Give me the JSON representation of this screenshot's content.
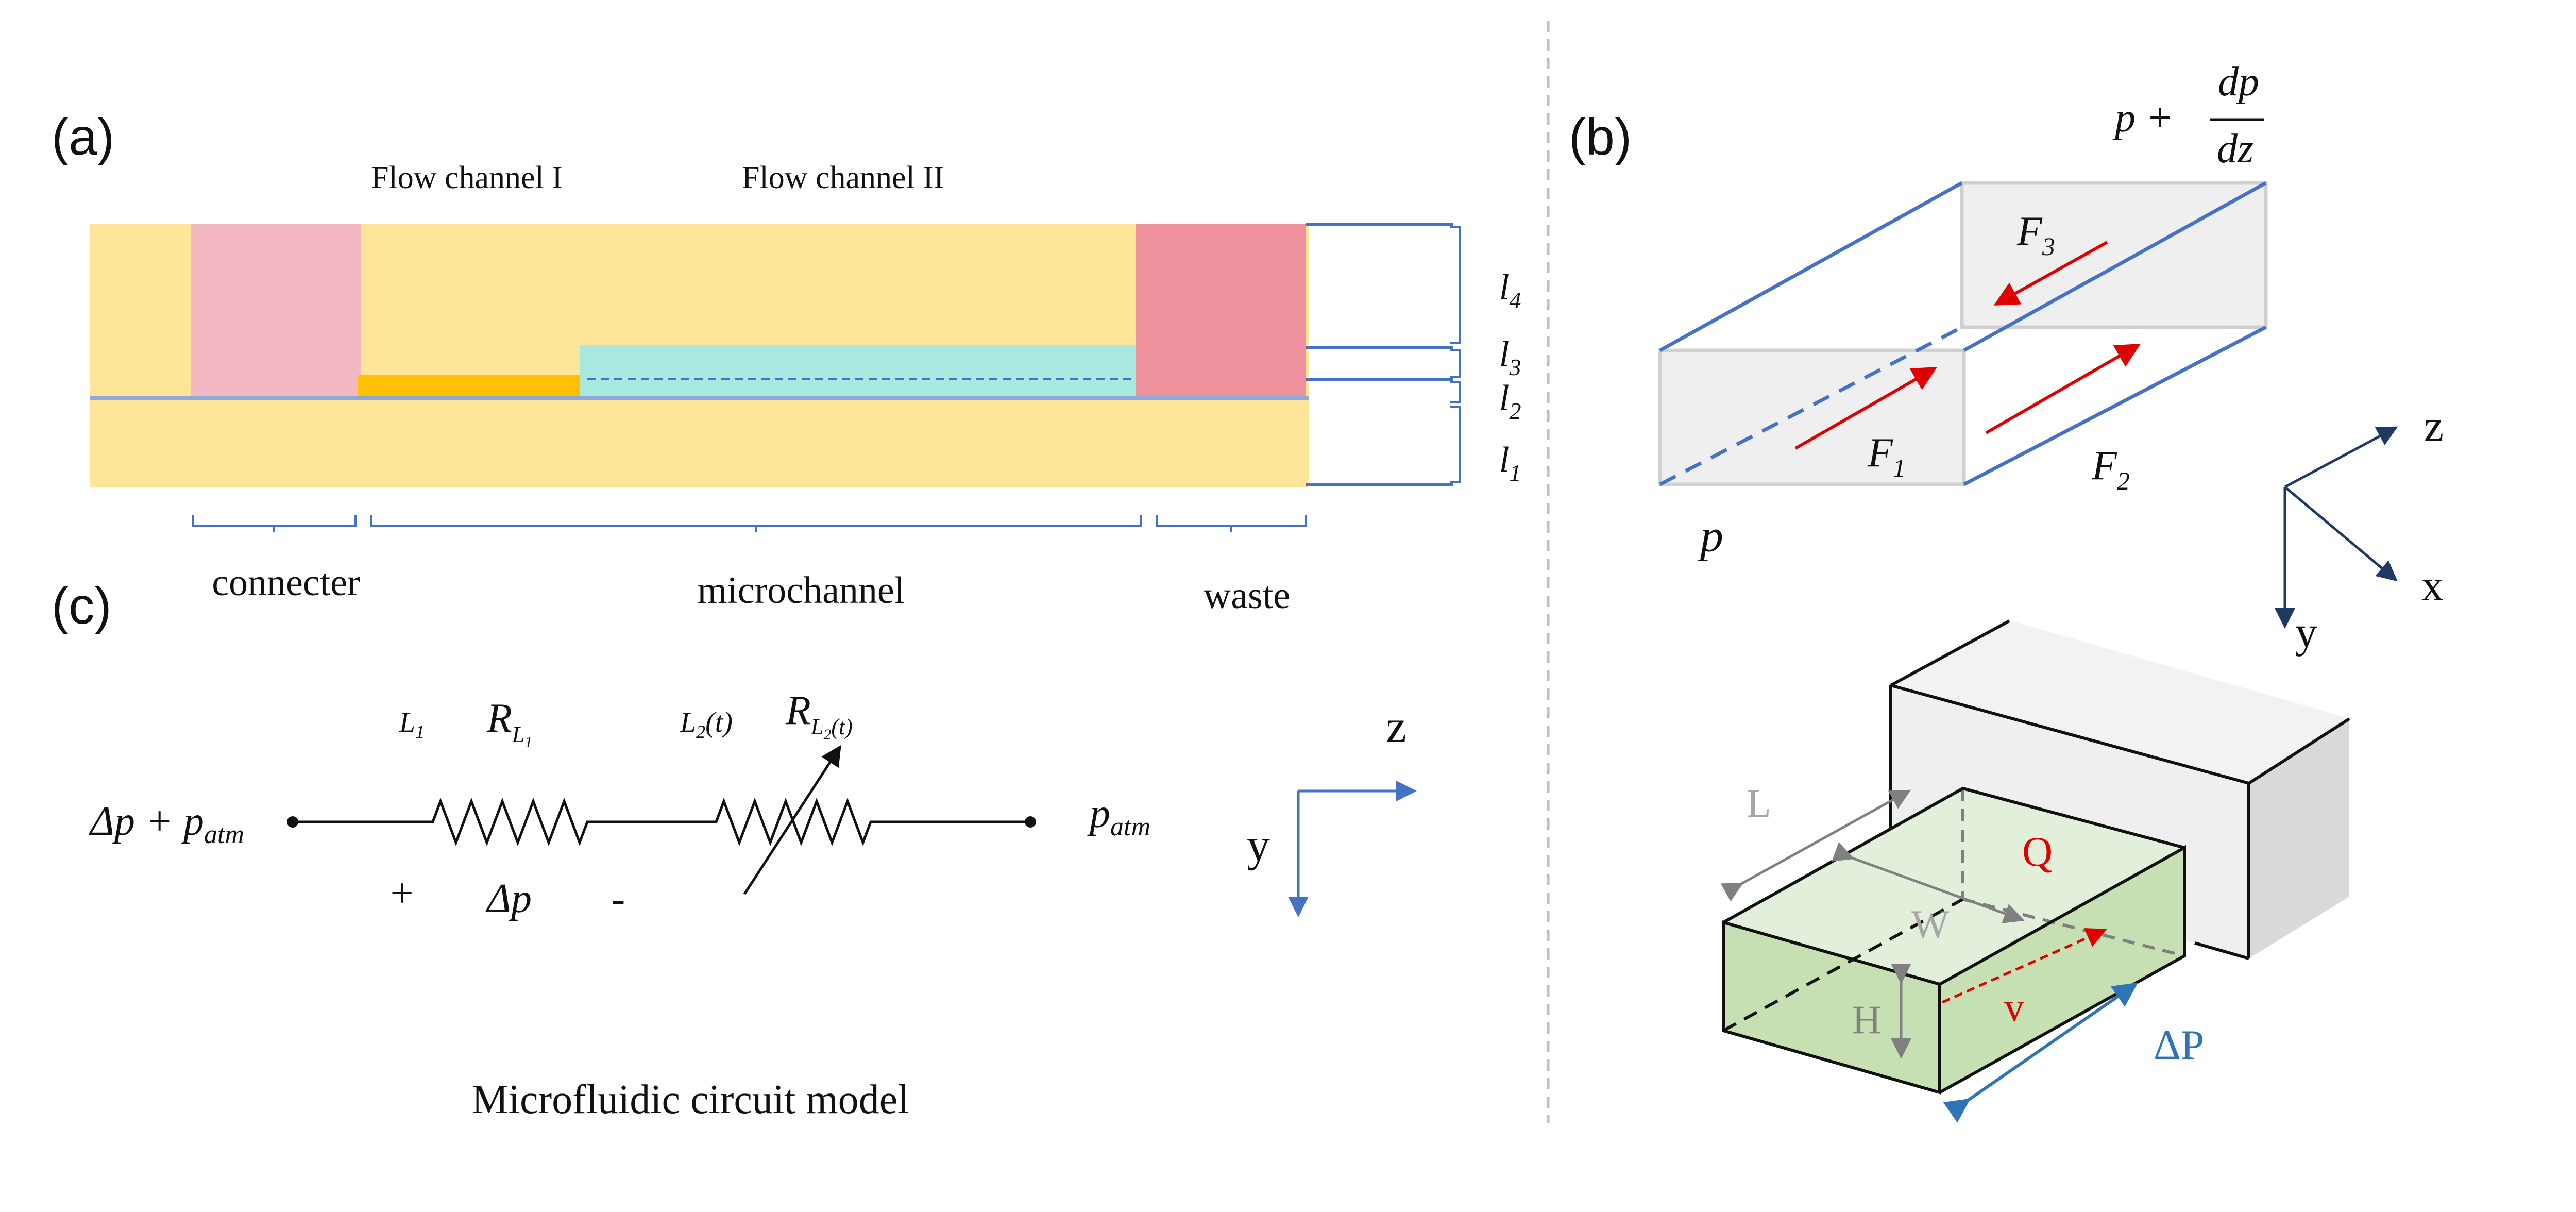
{
  "panel_a": {
    "label": "(a)",
    "flow_channel_1": "Flow channel I",
    "flow_channel_2": "Flow channel II",
    "region_connector": "connecter",
    "region_microchannel": "microchannel",
    "region_waste": "waste",
    "layers": [
      "l4",
      "l3",
      "l2",
      "l1"
    ],
    "colors": {
      "substrate": "#FFE599",
      "connector": "#F4B8C2",
      "waste": "#EE919C",
      "flow_channel_1": "#FFC000",
      "flow_channel_2": "#A9E8E0",
      "line": "#4472C4"
    }
  },
  "panel_b": {
    "label": "(b)",
    "pressure_in": "p",
    "pressure_out_prefix": "p +",
    "dp": "dp",
    "dz": "dz",
    "force_1": "F",
    "force_1_sub": "1",
    "force_2": "F",
    "force_2_sub": "2",
    "force_3": "F",
    "force_3_sub": "3",
    "axes": {
      "z": "z",
      "x": "x",
      "y": "y"
    },
    "block_labels": {
      "length": "L",
      "width": "W",
      "height": "H",
      "flow": "Q",
      "velocity": "v",
      "pressure_drop": "ΔP"
    },
    "colors": {
      "edge": "#4472C4",
      "arrow": "#E00000",
      "axis": "#1F3864",
      "block": "#C6E0B4",
      "grey": "#808080",
      "dp": "#2E75B6"
    }
  },
  "panel_c": {
    "label": "(c)",
    "left_node": "Δp + p",
    "left_node_sub": "atm",
    "right_node": "p",
    "right_node_sub": "atm",
    "r1_length": "L",
    "r1_length_sub": "1",
    "r1_name": "R",
    "r1_sub": "L",
    "r1_subsub": "1",
    "r2_length": "L",
    "r2_length_sub": "2",
    "r2_length_arg": "(t)",
    "r2_name": "R",
    "r2_sub": "L",
    "r2_subsub": "2",
    "r2_arg": "(t)",
    "plus": "+",
    "delta_p": "Δp",
    "minus": "-",
    "axis_z": "z",
    "axis_y": "y",
    "caption": "Microfluidic circuit model"
  }
}
